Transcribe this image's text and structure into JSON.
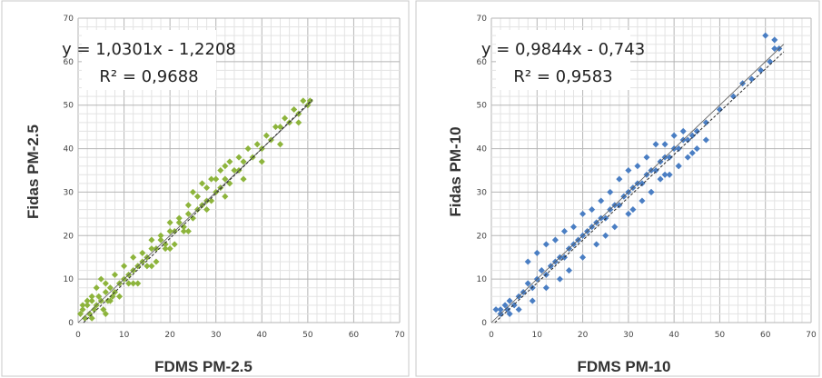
{
  "chart_data": [
    {
      "type": "scatter",
      "xlabel": "FDMS PM-2.5",
      "ylabel": "Fidas PM-2.5",
      "xlim": [
        0,
        70
      ],
      "ylim": [
        0,
        70
      ],
      "x_ticks": [
        "0",
        "10",
        "20",
        "30",
        "40",
        "50",
        "60",
        "70"
      ],
      "y_ticks": [
        "0",
        "10",
        "20",
        "30",
        "40",
        "50",
        "60",
        "70"
      ],
      "grid": true,
      "marker_color": "#8db43c",
      "equation": "y = 1,0301x - 1,2208",
      "r_squared": "R² = 0,9688",
      "trendline": {
        "slope": 1.0301,
        "intercept": -1.2208,
        "x_range": [
          0,
          51
        ]
      },
      "series": [
        {
          "x": [
            0.5,
            1,
            1.5,
            2,
            2.5,
            3,
            3.5,
            4,
            4.5,
            5,
            5.5,
            6,
            6.5,
            7,
            7.5,
            8,
            9,
            10,
            11,
            12,
            13,
            14,
            15,
            16,
            17,
            18,
            19,
            20,
            21,
            22,
            23,
            24,
            25,
            26,
            27,
            28,
            29,
            30,
            31,
            32,
            33,
            34,
            35,
            36,
            38,
            40,
            42,
            44,
            46,
            48,
            50,
            1,
            2,
            3,
            4,
            5,
            6,
            8,
            10,
            12,
            14,
            16,
            18,
            20,
            22,
            24,
            26,
            28,
            30,
            32,
            25,
            27,
            29,
            31,
            33,
            35,
            37,
            39,
            41,
            43,
            45,
            47,
            49,
            50.5,
            3,
            7,
            11,
            15,
            19,
            23,
            13,
            17,
            21,
            6,
            9,
            12,
            16,
            20,
            24,
            28,
            32,
            36,
            40,
            44,
            48
          ],
          "y": [
            2,
            3,
            1,
            4,
            2,
            5,
            3,
            4,
            6,
            5,
            3,
            7,
            5,
            8,
            6,
            7,
            9,
            10,
            11,
            12,
            13,
            14,
            15,
            17,
            17,
            19,
            18,
            21,
            21,
            23,
            22,
            25,
            24,
            26,
            27,
            28,
            28,
            30,
            31,
            33,
            32,
            35,
            35,
            37,
            38,
            40,
            42,
            45,
            46,
            48,
            50,
            4,
            5,
            6,
            8,
            10,
            9,
            11,
            13,
            15,
            16,
            19,
            20,
            23,
            24,
            27,
            29,
            31,
            33,
            36,
            30,
            32,
            33,
            35,
            37,
            38,
            40,
            41,
            43,
            45,
            47,
            49,
            51,
            51,
            1,
            5,
            9,
            13,
            17,
            21,
            9,
            14,
            18,
            2,
            6,
            9,
            13,
            17,
            21,
            26,
            29,
            33,
            37,
            41,
            46
          ]
        }
      ]
    },
    {
      "type": "scatter",
      "xlabel": "FDMS PM-10",
      "ylabel": "Fidas PM-10",
      "xlim": [
        0,
        70
      ],
      "ylim": [
        0,
        70
      ],
      "x_ticks": [
        "0",
        "10",
        "20",
        "30",
        "40",
        "50",
        "60",
        "70"
      ],
      "y_ticks": [
        "0",
        "10",
        "20",
        "30",
        "40",
        "50",
        "60",
        "70"
      ],
      "grid": true,
      "marker_color": "#4a7ec3",
      "equation": "y = 0,9844x - 0,743",
      "r_squared": "R² = 0,9583",
      "trendline": {
        "slope": 0.9844,
        "intercept": -0.743,
        "x_range": [
          0,
          64
        ]
      },
      "series": [
        {
          "x": [
            1,
            2,
            3,
            3.5,
            4,
            5,
            6,
            7,
            8,
            9,
            10,
            11,
            12,
            13,
            14,
            15,
            16,
            17,
            18,
            19,
            20,
            21,
            22,
            23,
            24,
            25,
            26,
            27,
            28,
            29,
            30,
            31,
            32,
            33,
            34,
            35,
            36,
            37,
            38,
            39,
            40,
            41,
            42,
            43,
            44,
            45,
            47,
            50,
            53,
            55,
            57,
            59,
            61,
            62,
            63,
            8,
            10,
            12,
            14,
            16,
            18,
            20,
            22,
            24,
            26,
            28,
            30,
            32,
            34,
            36,
            38,
            40,
            42,
            35,
            37,
            39,
            41,
            43,
            45,
            30,
            33,
            25,
            20,
            15,
            6,
            9,
            12,
            4,
            2,
            17,
            23,
            27,
            31,
            35,
            38,
            41,
            44,
            47,
            60,
            62
          ],
          "y": [
            3,
            2,
            4,
            3,
            5,
            4,
            6,
            7,
            9,
            8,
            10,
            12,
            11,
            13,
            14,
            15,
            15,
            17,
            18,
            19,
            20,
            21,
            22,
            23,
            24,
            24,
            26,
            27,
            27,
            29,
            30,
            31,
            32,
            32,
            34,
            35,
            35,
            37,
            38,
            38,
            40,
            40,
            42,
            42,
            43,
            44,
            46,
            49,
            52,
            55,
            56,
            58,
            60,
            63,
            63,
            14,
            16,
            18,
            19,
            21,
            22,
            25,
            26,
            28,
            30,
            33,
            35,
            36,
            38,
            41,
            41,
            43,
            44,
            30,
            33,
            34,
            36,
            38,
            40,
            25,
            28,
            20,
            15,
            10,
            3,
            5,
            8,
            2,
            3,
            12,
            18,
            22,
            26,
            30,
            34,
            36,
            39,
            42,
            66,
            65
          ]
        }
      ]
    }
  ]
}
